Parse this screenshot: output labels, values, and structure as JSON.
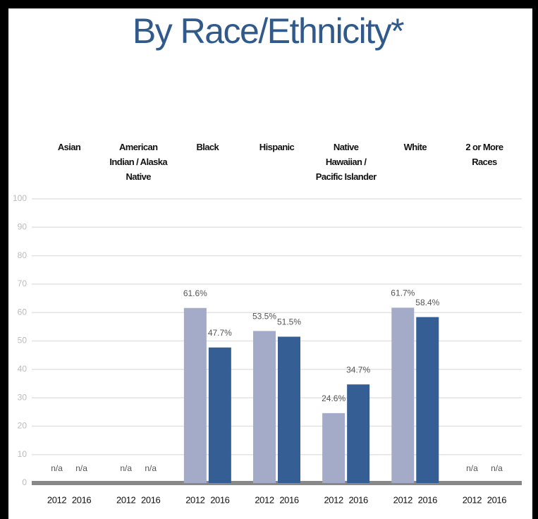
{
  "chart_data": {
    "type": "bar",
    "title": "By Race/Ethnicity*",
    "categories": [
      "Asian",
      "American\nIndian / Alaska\nNative",
      "Black",
      "Hispanic",
      "Native\nHawaiian /\nPacific Islander",
      "White",
      "2 or More\nRaces"
    ],
    "series": [
      {
        "name": "2012",
        "color": "#a3abc9",
        "values": [
          null,
          null,
          61.6,
          53.5,
          24.6,
          61.7,
          null
        ],
        "value_labels": [
          "n/a",
          "n/a",
          "61.6%",
          "53.5%",
          "24.6%",
          "61.7%",
          "n/a"
        ]
      },
      {
        "name": "2016",
        "color": "#355f94",
        "values": [
          null,
          null,
          47.7,
          51.5,
          34.7,
          58.4,
          null
        ],
        "value_labels": [
          "n/a",
          "n/a",
          "47.7%",
          "51.5%",
          "34.7%",
          "58.4%",
          "n/a"
        ]
      }
    ],
    "ylim": [
      0,
      100
    ],
    "yticks": [
      0,
      10,
      20,
      30,
      40,
      50,
      60,
      70,
      80,
      90,
      100
    ],
    "grid": true
  }
}
